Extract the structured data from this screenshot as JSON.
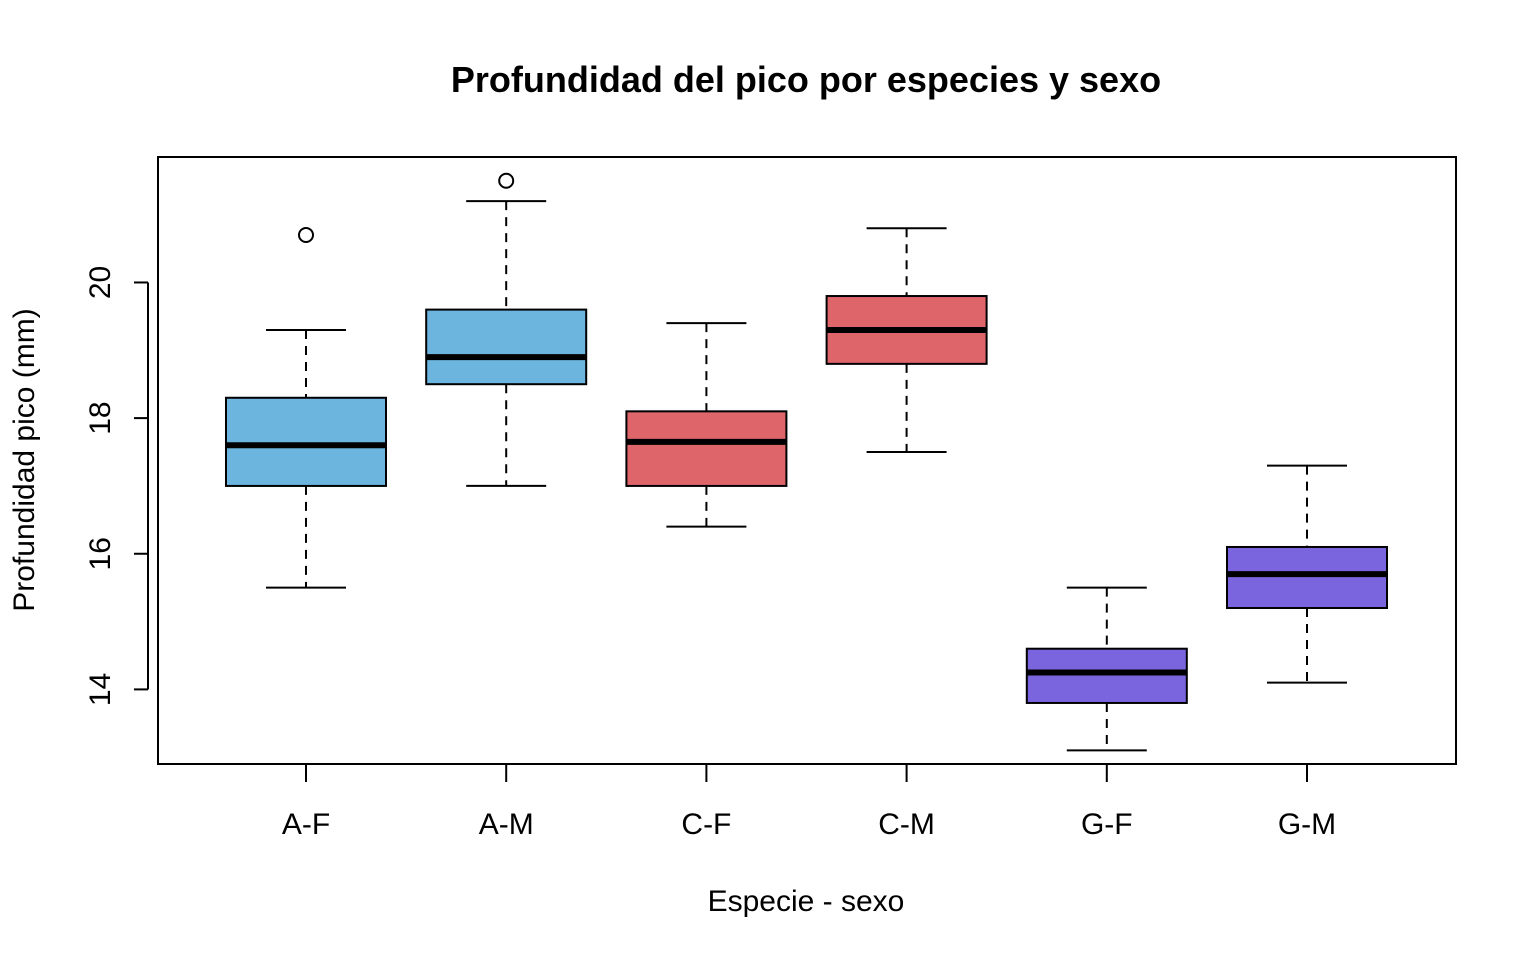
{
  "chart_data": {
    "type": "boxplot",
    "title": "Profundidad del pico por especies y sexo",
    "xlabel": "Especie - sexo",
    "ylabel": "Profundidad pico (mm)",
    "ylim": [
      12.9,
      21.85
    ],
    "yticks": [
      14,
      16,
      18,
      20
    ],
    "grid": false,
    "boxes": [
      {
        "category": "A-F",
        "whisker_low": 15.5,
        "q1": 17.0,
        "median": 17.6,
        "q3": 18.3,
        "whisker_high": 19.3,
        "outliers": [
          20.7
        ],
        "color": "#6BB5DE"
      },
      {
        "category": "A-M",
        "whisker_low": 17.0,
        "q1": 18.5,
        "median": 18.9,
        "q3": 19.6,
        "whisker_high": 21.2,
        "outliers": [
          21.5
        ],
        "color": "#6BB5DE"
      },
      {
        "category": "C-F",
        "whisker_low": 16.4,
        "q1": 17.0,
        "median": 17.65,
        "q3": 18.1,
        "whisker_high": 19.4,
        "outliers": [],
        "color": "#DE6569"
      },
      {
        "category": "C-M",
        "whisker_low": 17.5,
        "q1": 18.8,
        "median": 19.3,
        "q3": 19.8,
        "whisker_high": 20.8,
        "outliers": [],
        "color": "#DE6569"
      },
      {
        "category": "G-F",
        "whisker_low": 13.1,
        "q1": 13.8,
        "median": 14.25,
        "q3": 14.6,
        "whisker_high": 15.5,
        "outliers": [],
        "color": "#7B65DE"
      },
      {
        "category": "G-M",
        "whisker_low": 14.1,
        "q1": 15.2,
        "median": 15.7,
        "q3": 16.1,
        "whisker_high": 17.3,
        "outliers": [],
        "color": "#7B65DE"
      }
    ]
  }
}
